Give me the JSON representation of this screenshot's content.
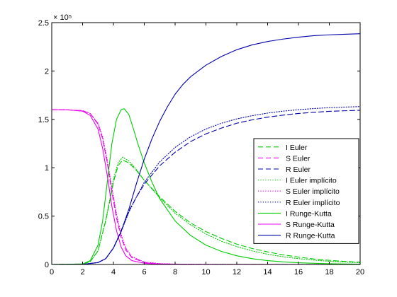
{
  "chart_data": {
    "type": "line",
    "title": "",
    "xlabel": "",
    "ylabel": "",
    "xlim": [
      0,
      20
    ],
    "ylim": [
      0,
      250000
    ],
    "y_exponent_label": "× 10⁵",
    "x_ticks": [
      0,
      2,
      4,
      6,
      8,
      10,
      12,
      14,
      16,
      18,
      20
    ],
    "x_tick_labels": [
      "0",
      "2",
      "4",
      "6",
      "8",
      "10",
      "12",
      "14",
      "16",
      "18",
      "20"
    ],
    "y_ticks": [
      0,
      50000,
      100000,
      150000,
      200000,
      250000
    ],
    "y_tick_labels": [
      "0",
      "0.5",
      "1",
      "1.5",
      "2",
      "2.5"
    ],
    "grid": false,
    "legend_position": "right-center",
    "series": [
      {
        "name": "I Euler",
        "color": "#00cc00",
        "style": "dashed",
        "x": [
          0,
          2,
          2.5,
          3,
          3.5,
          3.8,
          4,
          4.3,
          4.6,
          5,
          5.5,
          6,
          7,
          8,
          9,
          10,
          11,
          12,
          13,
          14,
          15,
          16,
          17,
          18,
          19,
          20
        ],
        "y": [
          0,
          500,
          3000,
          14000,
          45000,
          68000,
          85000,
          102000,
          108000,
          105000,
          97000,
          87000,
          70000,
          55000,
          43000,
          34000,
          27000,
          21000,
          16500,
          13000,
          10000,
          7600,
          5700,
          4300,
          3200,
          2300
        ]
      },
      {
        "name": "S Euler",
        "color": "#ee00ee",
        "style": "dashed",
        "x": [
          0,
          1,
          2,
          2.5,
          3,
          3.3,
          3.6,
          3.9,
          4.2,
          4.5,
          4.8,
          5.2,
          6,
          7,
          8,
          10,
          12,
          14,
          16,
          18,
          20
        ],
        "y": [
          160000,
          159900,
          159000,
          156000,
          145000,
          130000,
          105000,
          75000,
          48000,
          28000,
          15000,
          7000,
          2000,
          700,
          300,
          100,
          50,
          30,
          20,
          10,
          5
        ]
      },
      {
        "name": "R Euler",
        "color": "#0000aa",
        "style": "dashed",
        "x": [
          0,
          2,
          3,
          3.5,
          4,
          4.5,
          5,
          5.5,
          6,
          7,
          8,
          9,
          10,
          11,
          12,
          13,
          14,
          15,
          16,
          17,
          18,
          19,
          20
        ],
        "y": [
          0,
          100,
          2000,
          6000,
          17000,
          35000,
          55000,
          70000,
          83000,
          102000,
          116000,
          127000,
          135000,
          141000,
          146000,
          149500,
          152300,
          154400,
          156100,
          157300,
          158300,
          158900,
          159400
        ]
      },
      {
        "name": "I Euler implícito",
        "color": "#00cc00",
        "style": "dotted",
        "x": [
          0,
          2,
          2.5,
          3,
          3.5,
          3.8,
          4,
          4.3,
          4.6,
          5,
          5.5,
          6,
          7,
          8,
          9,
          10,
          11,
          12,
          13,
          14,
          15,
          16,
          17,
          18,
          19,
          20
        ],
        "y": [
          0,
          500,
          3000,
          14000,
          46000,
          70000,
          88000,
          105000,
          111000,
          107000,
          98000,
          87000,
          69000,
          53000,
          41000,
          31500,
          24000,
          18500,
          14000,
          10600,
          8000,
          6000,
          4500,
          3300,
          2500,
          1800
        ]
      },
      {
        "name": "S Euler implícito",
        "color": "#ee00ee",
        "style": "dotted",
        "x": [
          0,
          1,
          2,
          2.5,
          3,
          3.3,
          3.6,
          3.9,
          4.2,
          4.5,
          4.8,
          5.2,
          6,
          7,
          8,
          10,
          12,
          14,
          16,
          18,
          20
        ],
        "y": [
          160000,
          159900,
          159000,
          156000,
          146000,
          132000,
          108000,
          79000,
          52000,
          31000,
          17000,
          8000,
          2500,
          900,
          400,
          150,
          80,
          50,
          30,
          20,
          10
        ]
      },
      {
        "name": "R Euler implícito",
        "color": "#0000aa",
        "style": "dotted",
        "x": [
          0,
          2,
          3,
          3.5,
          4,
          4.5,
          5,
          5.5,
          6,
          7,
          8,
          9,
          10,
          11,
          12,
          13,
          14,
          15,
          16,
          17,
          18,
          19,
          20
        ],
        "y": [
          0,
          100,
          2000,
          6000,
          17000,
          34000,
          54000,
          70000,
          85000,
          106000,
          121000,
          132000,
          140000,
          146000,
          150500,
          153800,
          156500,
          158500,
          160000,
          161200,
          162100,
          162700,
          163200
        ]
      },
      {
        "name": "I Runge-Kutta",
        "color": "#00cc00",
        "style": "solid",
        "x": [
          0,
          2,
          2.5,
          3,
          3.3,
          3.6,
          3.9,
          4.2,
          4.5,
          4.7,
          5,
          5.3,
          5.6,
          6,
          6.5,
          7,
          8,
          9,
          10,
          11,
          12,
          13,
          14,
          15,
          16,
          17,
          18,
          19,
          20
        ],
        "y": [
          0,
          500,
          4000,
          20000,
          45000,
          85000,
          125000,
          150000,
          160000,
          161000,
          155000,
          140000,
          124000,
          105000,
          85000,
          68000,
          45000,
          30000,
          20000,
          13500,
          9000,
          6000,
          4000,
          2700,
          1800,
          1200,
          800,
          500,
          350
        ]
      },
      {
        "name": "S Runge-Kutta",
        "color": "#ee00ee",
        "style": "solid",
        "x": [
          0,
          1,
          2,
          2.5,
          3,
          3.3,
          3.6,
          3.9,
          4.2,
          4.5,
          4.8,
          5.2,
          6,
          7,
          8,
          10,
          12,
          14,
          16,
          18,
          20
        ],
        "y": [
          160000,
          159900,
          158500,
          154000,
          140000,
          120000,
          92000,
          60000,
          35000,
          18000,
          9000,
          4000,
          1200,
          400,
          150,
          50,
          30,
          20,
          10,
          5,
          3
        ]
      },
      {
        "name": "R Runge-Kutta",
        "color": "#0000aa",
        "style": "solid",
        "x": [
          0,
          2,
          3,
          3.5,
          4,
          4.5,
          5,
          5.5,
          6,
          6.5,
          7,
          7.5,
          8,
          8.5,
          9,
          10,
          11,
          12,
          13,
          14,
          15,
          16,
          17,
          18,
          19,
          20
        ],
        "y": [
          0,
          100,
          2000,
          6000,
          17000,
          34000,
          57000,
          84000,
          109000,
          130000,
          148000,
          163000,
          176000,
          186000,
          194000,
          206000,
          215000,
          222000,
          227000,
          230500,
          233000,
          235000,
          236500,
          237400,
          238000,
          238500
        ]
      }
    ]
  }
}
